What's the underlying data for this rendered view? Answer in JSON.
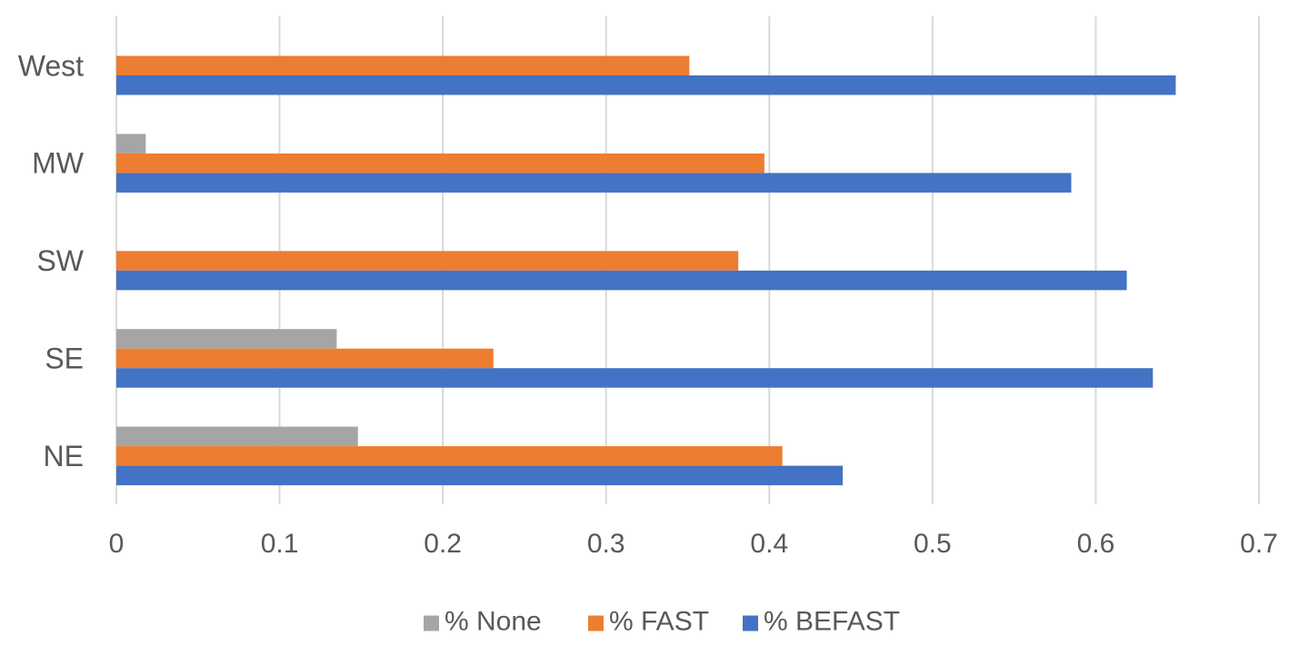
{
  "chart_data": {
    "type": "bar",
    "orientation": "horizontal",
    "title": "",
    "xlabel": "",
    "ylabel": "",
    "categories": [
      "NE",
      "SE",
      "SW",
      "MW",
      "West"
    ],
    "series": [
      {
        "name": "% None",
        "color": "#a5a5a5",
        "values": [
          0.148,
          0.135,
          0.0,
          0.018,
          0.0
        ]
      },
      {
        "name": "% FAST",
        "color": "#ed7d31",
        "values": [
          0.408,
          0.231,
          0.381,
          0.397,
          0.351
        ]
      },
      {
        "name": "% BEFAST",
        "color": "#4472c4",
        "values": [
          0.445,
          0.635,
          0.619,
          0.585,
          0.649
        ]
      }
    ],
    "xlim": [
      0,
      0.7
    ],
    "xticks": [
      0,
      0.1,
      0.2,
      0.3,
      0.4,
      0.5,
      0.6,
      0.7
    ],
    "xtick_labels": [
      "0",
      "0.1",
      "0.2",
      "0.3",
      "0.4",
      "0.5",
      "0.6",
      "0.7"
    ],
    "grid": "vertical",
    "legend_position": "bottom"
  },
  "colors": {
    "gridline": "#d9d9d9",
    "text": "#595959"
  }
}
